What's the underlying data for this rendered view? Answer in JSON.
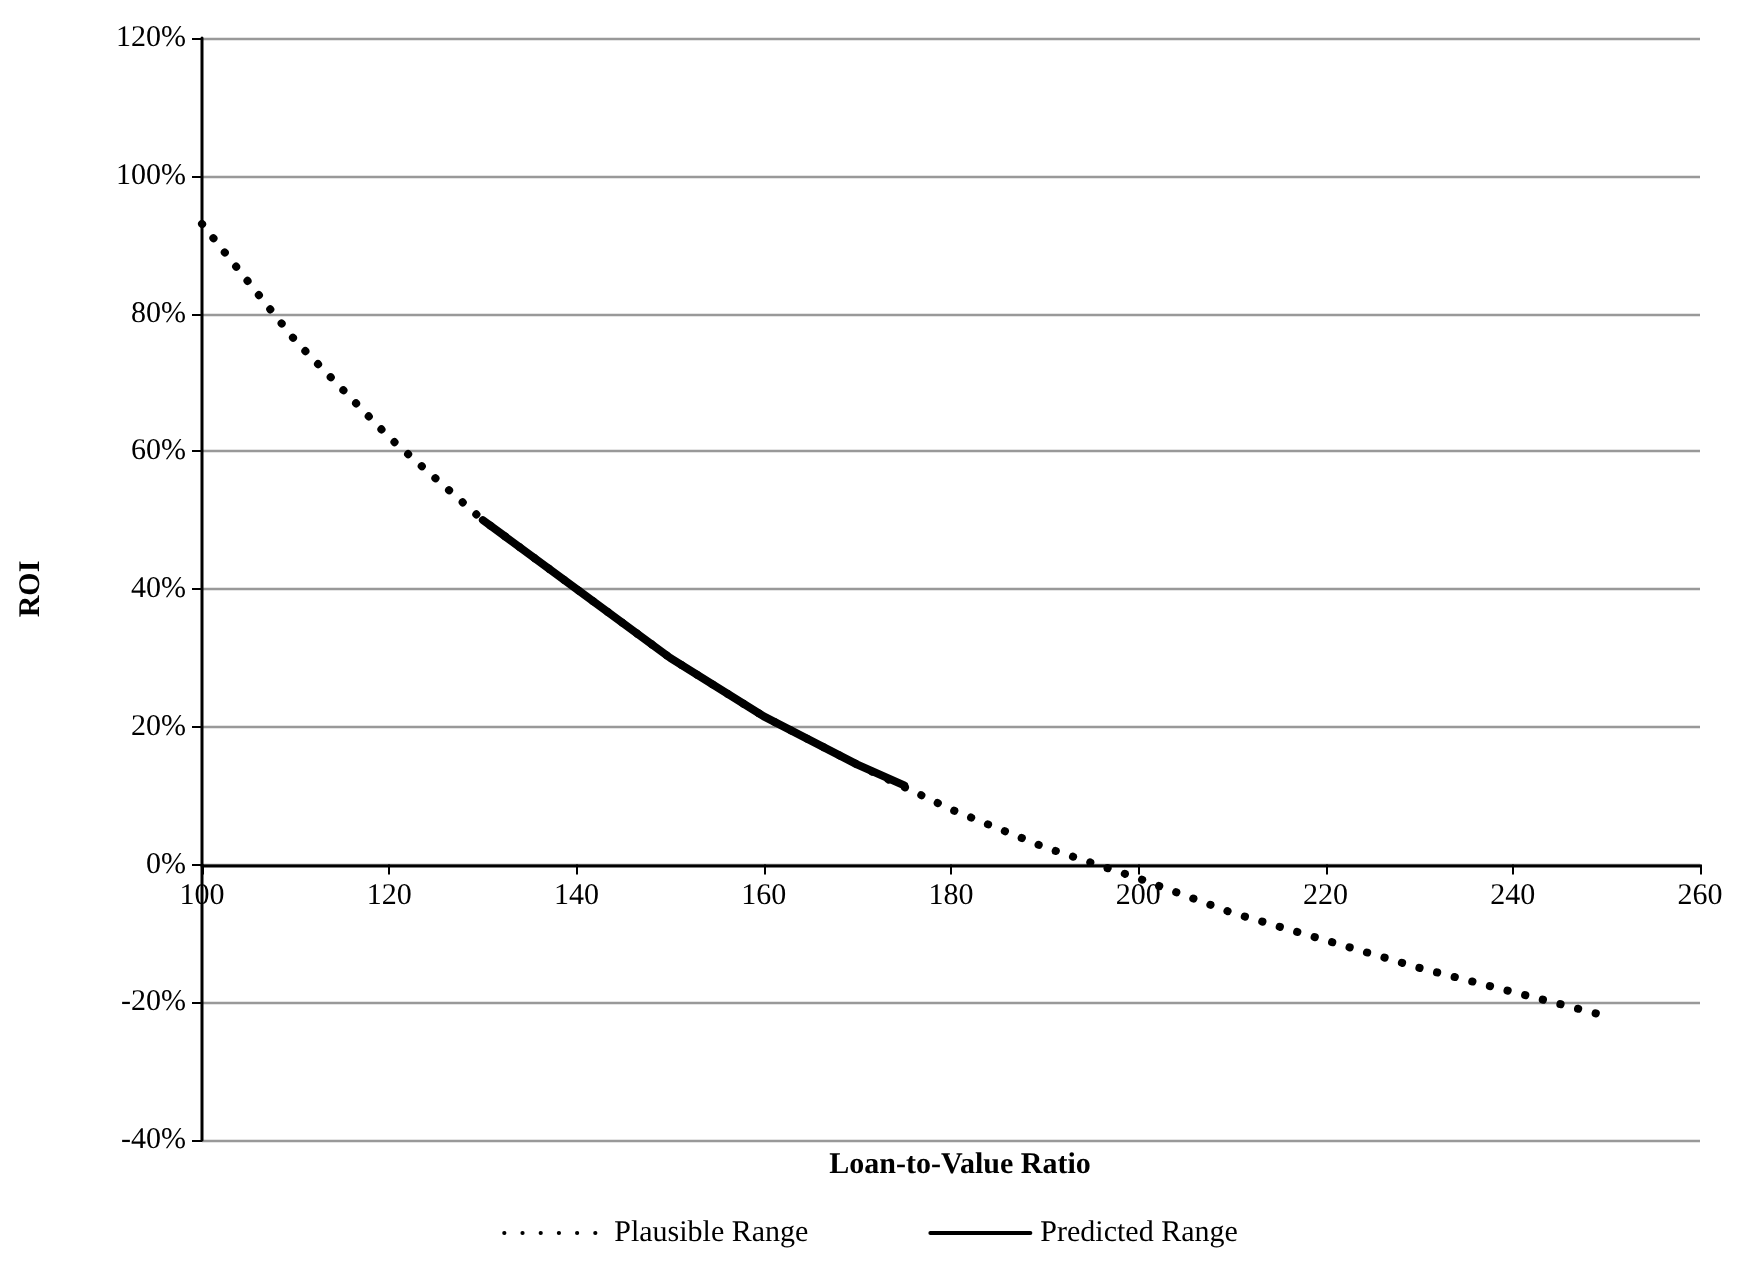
{
  "chart_data": {
    "type": "line",
    "xlabel": "Loan-to-Value Ratio",
    "ylabel": "ROI",
    "series": [
      {
        "name": "Plausible Range",
        "color": "#000000",
        "line_style": "dotted",
        "x": [
          100,
          110,
          120,
          130,
          140,
          150,
          160,
          170,
          180,
          190,
          200,
          210,
          220,
          230,
          240,
          250
        ],
        "values": [
          93,
          76,
          62,
          50,
          40,
          30,
          21.5,
          14.5,
          8,
          2.5,
          -2,
          -7,
          -11,
          -15,
          -18.5,
          -22
        ]
      },
      {
        "name": "Predicted Range",
        "color": "#000000",
        "line_style": "solid",
        "x": [
          130,
          140,
          150,
          160,
          170,
          175
        ],
        "values": [
          50,
          40,
          30,
          21.5,
          14.5,
          11.5
        ]
      }
    ],
    "xlim": [
      100,
      260
    ],
    "xticks": [
      100,
      120,
      140,
      160,
      180,
      200,
      220,
      240,
      260
    ],
    "ylim": [
      -40,
      120
    ],
    "yticks": [
      {
        "value": -40,
        "label": "-40%"
      },
      {
        "value": -20,
        "label": "-20%"
      },
      {
        "value": 0,
        "label": "0%"
      },
      {
        "value": 20,
        "label": "20%"
      },
      {
        "value": 40,
        "label": "40%"
      },
      {
        "value": 60,
        "label": "60%"
      },
      {
        "value": 80,
        "label": "80%"
      },
      {
        "value": 100,
        "label": "100%"
      },
      {
        "value": 120,
        "label": "120%"
      }
    ],
    "grid": "y",
    "legend": "bottom",
    "marker": "none"
  }
}
